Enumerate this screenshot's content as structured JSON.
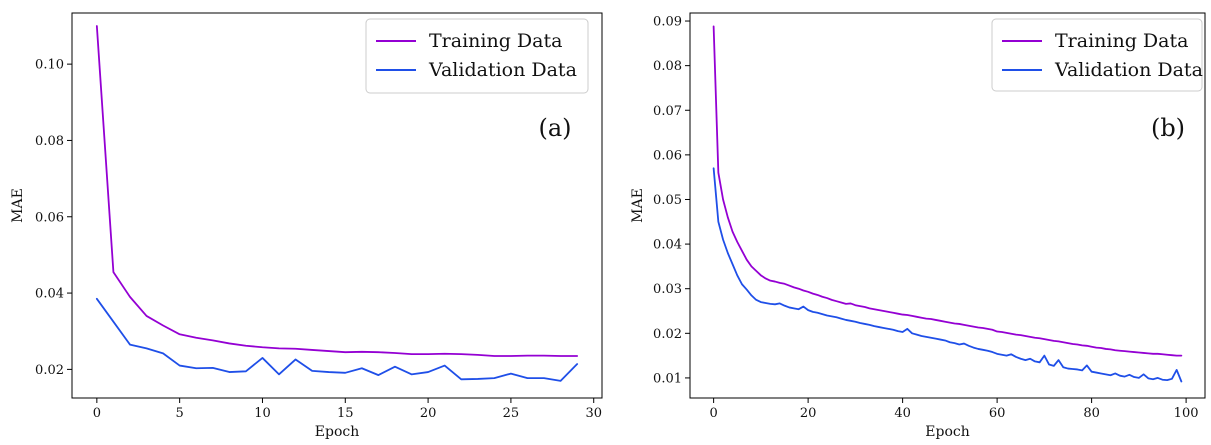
{
  "chart_data": [
    {
      "type": "line",
      "panel_tag": "(a)",
      "xlabel": "Epoch",
      "ylabel": "MAE",
      "xlim": [
        -1.5,
        30.5
      ],
      "ylim": [
        0.0125,
        0.1134
      ],
      "xticks": [
        0,
        5,
        10,
        15,
        20,
        25,
        30
      ],
      "xtick_labels": [
        "0",
        "5",
        "10",
        "15",
        "20",
        "25",
        "30"
      ],
      "yticks": [
        0.02,
        0.04,
        0.06,
        0.08,
        0.1
      ],
      "ytick_labels": [
        "0.02",
        "0.04",
        "0.06",
        "0.08",
        "0.10"
      ],
      "legend_position": "top-right",
      "grid": false,
      "series": [
        {
          "name": "Training Data",
          "color": "#9400D3",
          "x": [
            0,
            1,
            2,
            3,
            4,
            5,
            6,
            7,
            8,
            9,
            10,
            11,
            12,
            13,
            14,
            15,
            16,
            17,
            18,
            19,
            20,
            21,
            22,
            23,
            24,
            25,
            26,
            27,
            28,
            29
          ],
          "y": [
            0.11,
            0.0455,
            0.039,
            0.034,
            0.0315,
            0.0292,
            0.0283,
            0.0276,
            0.0268,
            0.0262,
            0.0258,
            0.0255,
            0.0254,
            0.0251,
            0.0248,
            0.0245,
            0.0246,
            0.0245,
            0.0243,
            0.024,
            0.024,
            0.0241,
            0.024,
            0.0238,
            0.0235,
            0.0235,
            0.0236,
            0.0236,
            0.0235,
            0.0235
          ]
        },
        {
          "name": "Validation Data",
          "color": "#1F4FE8",
          "x": [
            0,
            1,
            2,
            3,
            4,
            5,
            6,
            7,
            8,
            9,
            10,
            11,
            12,
            13,
            14,
            15,
            16,
            17,
            18,
            19,
            20,
            21,
            22,
            23,
            24,
            25,
            26,
            27,
            28,
            29
          ],
          "y": [
            0.0385,
            0.0325,
            0.0265,
            0.0255,
            0.0242,
            0.021,
            0.0203,
            0.0204,
            0.0193,
            0.0195,
            0.023,
            0.0187,
            0.0226,
            0.0196,
            0.0193,
            0.0191,
            0.0203,
            0.0185,
            0.0207,
            0.0187,
            0.0193,
            0.021,
            0.0174,
            0.0175,
            0.0177,
            0.0189,
            0.0177,
            0.0177,
            0.017,
            0.0214
          ]
        }
      ]
    },
    {
      "type": "line",
      "panel_tag": "(b)",
      "xlabel": "Epoch",
      "ylabel": "MAE",
      "xlim": [
        -5,
        104
      ],
      "ylim": [
        0.0055,
        0.0918
      ],
      "xticks": [
        0,
        20,
        40,
        60,
        80,
        100
      ],
      "xtick_labels": [
        "0",
        "20",
        "40",
        "60",
        "80",
        "100"
      ],
      "yticks": [
        0.01,
        0.02,
        0.03,
        0.04,
        0.05,
        0.06,
        0.07,
        0.08,
        0.09
      ],
      "ytick_labels": [
        "0.01",
        "0.02",
        "0.03",
        "0.04",
        "0.05",
        "0.06",
        "0.07",
        "0.08",
        "0.09"
      ],
      "legend_position": "top-right",
      "grid": false,
      "series": [
        {
          "name": "Training Data",
          "color": "#9400D3",
          "x": [
            0,
            1,
            2,
            3,
            4,
            5,
            6,
            7,
            8,
            9,
            10,
            11,
            12,
            13,
            14,
            15,
            16,
            17,
            18,
            19,
            20,
            21,
            22,
            23,
            24,
            25,
            26,
            27,
            28,
            29,
            30,
            31,
            32,
            33,
            34,
            35,
            36,
            37,
            38,
            39,
            40,
            41,
            42,
            43,
            44,
            45,
            46,
            47,
            48,
            49,
            50,
            51,
            52,
            53,
            54,
            55,
            56,
            57,
            58,
            59,
            60,
            61,
            62,
            63,
            64,
            65,
            66,
            67,
            68,
            69,
            70,
            71,
            72,
            73,
            74,
            75,
            76,
            77,
            78,
            79,
            80,
            81,
            82,
            83,
            84,
            85,
            86,
            87,
            88,
            89,
            90,
            91,
            92,
            93,
            94,
            95,
            96,
            97,
            98,
            99
          ],
          "y": [
            0.0888,
            0.056,
            0.05,
            0.046,
            0.0428,
            0.0405,
            0.0385,
            0.0365,
            0.035,
            0.034,
            0.033,
            0.0323,
            0.0318,
            0.0316,
            0.0313,
            0.0311,
            0.0307,
            0.0303,
            0.03,
            0.0296,
            0.0293,
            0.0289,
            0.0286,
            0.0282,
            0.0279,
            0.0275,
            0.0272,
            0.0269,
            0.0266,
            0.0267,
            0.0263,
            0.0261,
            0.0259,
            0.0256,
            0.0254,
            0.0252,
            0.025,
            0.0248,
            0.0246,
            0.0244,
            0.0242,
            0.0241,
            0.0239,
            0.0237,
            0.0235,
            0.0233,
            0.0232,
            0.023,
            0.0228,
            0.0226,
            0.0224,
            0.0222,
            0.0221,
            0.0219,
            0.0217,
            0.0215,
            0.0213,
            0.0212,
            0.021,
            0.0208,
            0.0204,
            0.0203,
            0.0201,
            0.0199,
            0.0197,
            0.0196,
            0.0194,
            0.0192,
            0.019,
            0.0189,
            0.0187,
            0.0185,
            0.0183,
            0.0182,
            0.018,
            0.0178,
            0.0176,
            0.0175,
            0.0173,
            0.0172,
            0.017,
            0.0168,
            0.0167,
            0.0165,
            0.0164,
            0.0162,
            0.0161,
            0.016,
            0.0159,
            0.0158,
            0.0157,
            0.0156,
            0.0155,
            0.0154,
            0.0154,
            0.0153,
            0.0152,
            0.0151,
            0.015,
            0.015
          ]
        },
        {
          "name": "Validation Data",
          "color": "#1F4FE8",
          "x": [
            0,
            1,
            2,
            3,
            4,
            5,
            6,
            7,
            8,
            9,
            10,
            11,
            12,
            13,
            14,
            15,
            16,
            17,
            18,
            19,
            20,
            21,
            22,
            23,
            24,
            25,
            26,
            27,
            28,
            29,
            30,
            31,
            32,
            33,
            34,
            35,
            36,
            37,
            38,
            39,
            40,
            41,
            42,
            43,
            44,
            45,
            46,
            47,
            48,
            49,
            50,
            51,
            52,
            53,
            54,
            55,
            56,
            57,
            58,
            59,
            60,
            61,
            62,
            63,
            64,
            65,
            66,
            67,
            68,
            69,
            70,
            71,
            72,
            73,
            74,
            75,
            76,
            77,
            78,
            79,
            80,
            81,
            82,
            83,
            84,
            85,
            86,
            87,
            88,
            89,
            90,
            91,
            92,
            93,
            94,
            95,
            96,
            97,
            98,
            99
          ],
          "y": [
            0.057,
            0.045,
            0.041,
            0.038,
            0.0355,
            0.033,
            0.031,
            0.0298,
            0.0285,
            0.0275,
            0.027,
            0.0268,
            0.0266,
            0.0265,
            0.0267,
            0.0262,
            0.0258,
            0.0256,
            0.0254,
            0.026,
            0.0252,
            0.0248,
            0.0246,
            0.0243,
            0.024,
            0.0238,
            0.0236,
            0.0233,
            0.023,
            0.0228,
            0.0226,
            0.0223,
            0.0221,
            0.0219,
            0.0216,
            0.0214,
            0.0212,
            0.021,
            0.0208,
            0.0205,
            0.0203,
            0.021,
            0.02,
            0.0197,
            0.0194,
            0.0192,
            0.019,
            0.0188,
            0.0186,
            0.0184,
            0.018,
            0.0178,
            0.0175,
            0.0177,
            0.0172,
            0.0168,
            0.0165,
            0.0163,
            0.0161,
            0.0158,
            0.0154,
            0.0152,
            0.015,
            0.0153,
            0.0147,
            0.0143,
            0.014,
            0.0143,
            0.0137,
            0.0135,
            0.015,
            0.013,
            0.0127,
            0.014,
            0.0124,
            0.0121,
            0.012,
            0.0119,
            0.0117,
            0.0128,
            0.0114,
            0.0112,
            0.011,
            0.0108,
            0.0106,
            0.011,
            0.0105,
            0.0103,
            0.0107,
            0.0102,
            0.01,
            0.0108,
            0.0099,
            0.0097,
            0.01,
            0.0096,
            0.0095,
            0.0098,
            0.0118,
            0.0092
          ]
        }
      ]
    }
  ]
}
